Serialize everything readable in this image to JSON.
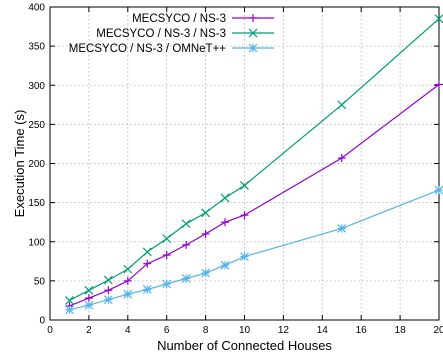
{
  "chart_data": {
    "type": "line",
    "title": "",
    "xlabel": "Number of Connected Houses",
    "ylabel": "Execution Time (s)",
    "xlim": [
      0,
      20
    ],
    "ylim": [
      0,
      400
    ],
    "xticks": [
      0,
      2,
      4,
      6,
      8,
      10,
      12,
      14,
      16,
      18,
      20
    ],
    "yticks": [
      0,
      50,
      100,
      150,
      200,
      250,
      300,
      350,
      400
    ],
    "grid": true,
    "legend_position": "top-right",
    "series": [
      {
        "name": "MECSYCO / NS-3",
        "color": "#9400d3",
        "marker": "plus",
        "points": [
          [
            1,
            18
          ],
          [
            2,
            28
          ],
          [
            3,
            38
          ],
          [
            4,
            50
          ],
          [
            5,
            72
          ],
          [
            6,
            83
          ],
          [
            7,
            96
          ],
          [
            8,
            110
          ],
          [
            9,
            125
          ],
          [
            10,
            134
          ],
          [
            15,
            207
          ],
          [
            20,
            301
          ]
        ]
      },
      {
        "name": "MECSYCO / NS-3 / NS-3",
        "color": "#009e73",
        "marker": "cross",
        "points": [
          [
            1,
            25
          ],
          [
            2,
            38
          ],
          [
            3,
            51
          ],
          [
            4,
            65
          ],
          [
            5,
            87
          ],
          [
            6,
            104
          ],
          [
            7,
            123
          ],
          [
            8,
            137
          ],
          [
            9,
            156
          ],
          [
            10,
            172
          ],
          [
            15,
            275
          ],
          [
            20,
            385
          ]
        ]
      },
      {
        "name": "MECSYCO / NS-3 / OMNeT++",
        "color": "#56b4e9",
        "marker": "star",
        "points": [
          [
            1,
            13
          ],
          [
            2,
            19
          ],
          [
            3,
            26
          ],
          [
            4,
            33
          ],
          [
            5,
            39
          ],
          [
            6,
            46
          ],
          [
            7,
            53
          ],
          [
            8,
            60
          ],
          [
            9,
            70
          ],
          [
            10,
            81
          ],
          [
            15,
            117
          ],
          [
            20,
            166
          ]
        ]
      }
    ]
  }
}
